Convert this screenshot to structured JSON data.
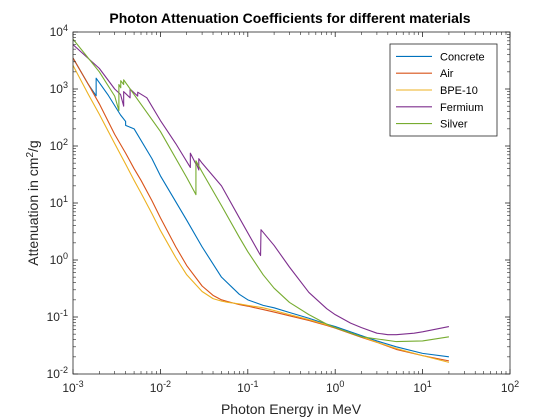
{
  "chart_data": {
    "type": "line",
    "title": "Photon Attenuation Coefficients for different materials",
    "xlabel": "Photon Energy in MeV",
    "ylabel_base": "Attenuation in cm",
    "ylabel_sup": "2",
    "ylabel_tail": "/g",
    "xscale": "log",
    "yscale": "log",
    "xlim": [
      0.001,
      100
    ],
    "ylim": [
      0.01,
      10000
    ],
    "grid": false,
    "legend_position": "top-right",
    "x_ticks": [
      {
        "value": 0.001,
        "base": "10",
        "exp": "-3"
      },
      {
        "value": 0.01,
        "base": "10",
        "exp": "-2"
      },
      {
        "value": 0.1,
        "base": "10",
        "exp": "-1"
      },
      {
        "value": 1,
        "base": "10",
        "exp": "0"
      },
      {
        "value": 10,
        "base": "10",
        "exp": "1"
      },
      {
        "value": 100,
        "base": "10",
        "exp": "2"
      }
    ],
    "y_ticks": [
      {
        "value": 0.01,
        "base": "10",
        "exp": "-2"
      },
      {
        "value": 0.1,
        "base": "10",
        "exp": "-1"
      },
      {
        "value": 1,
        "base": "10",
        "exp": "0"
      },
      {
        "value": 10,
        "base": "10",
        "exp": "1"
      },
      {
        "value": 100,
        "base": "10",
        "exp": "2"
      },
      {
        "value": 1000,
        "base": "10",
        "exp": "3"
      },
      {
        "value": 10000,
        "base": "10",
        "exp": "4"
      }
    ],
    "series": [
      {
        "name": "Concrete",
        "color": "#0072BD",
        "points": [
          [
            0.001,
            3500
          ],
          [
            0.0015,
            1200
          ],
          [
            0.00184,
            760
          ],
          [
            0.00184,
            1550
          ],
          [
            0.0025,
            800
          ],
          [
            0.0035,
            350
          ],
          [
            0.004,
            270
          ],
          [
            0.004,
            230
          ],
          [
            0.005,
            200
          ],
          [
            0.008,
            60
          ],
          [
            0.01,
            30
          ],
          [
            0.02,
            5
          ],
          [
            0.03,
            1.7
          ],
          [
            0.05,
            0.5
          ],
          [
            0.08,
            0.25
          ],
          [
            0.1,
            0.2
          ],
          [
            0.15,
            0.16
          ],
          [
            0.2,
            0.145
          ],
          [
            0.3,
            0.12
          ],
          [
            0.5,
            0.095
          ],
          [
            0.8,
            0.075
          ],
          [
            1,
            0.068
          ],
          [
            2,
            0.047
          ],
          [
            3,
            0.038
          ],
          [
            5,
            0.03
          ],
          [
            10,
            0.023
          ],
          [
            20,
            0.02
          ]
        ]
      },
      {
        "name": "Air",
        "color": "#D95319",
        "points": [
          [
            0.001,
            3500
          ],
          [
            0.0015,
            1200
          ],
          [
            0.002,
            550
          ],
          [
            0.003,
            160
          ],
          [
            0.004,
            75
          ],
          [
            0.005,
            40
          ],
          [
            0.006,
            25
          ],
          [
            0.008,
            11
          ],
          [
            0.01,
            5.5
          ],
          [
            0.015,
            1.7
          ],
          [
            0.02,
            0.8
          ],
          [
            0.03,
            0.35
          ],
          [
            0.04,
            0.24
          ],
          [
            0.05,
            0.2
          ],
          [
            0.06,
            0.185
          ],
          [
            0.08,
            0.165
          ],
          [
            0.1,
            0.155
          ],
          [
            0.15,
            0.135
          ],
          [
            0.2,
            0.122
          ],
          [
            0.3,
            0.105
          ],
          [
            0.5,
            0.087
          ],
          [
            0.8,
            0.071
          ],
          [
            1,
            0.064
          ],
          [
            2,
            0.044
          ],
          [
            3,
            0.036
          ],
          [
            5,
            0.027
          ],
          [
            10,
            0.021
          ],
          [
            20,
            0.017
          ]
        ]
      },
      {
        "name": "BPE-10",
        "color": "#EDB120",
        "points": [
          [
            0.001,
            2600
          ],
          [
            0.0015,
            800
          ],
          [
            0.002,
            360
          ],
          [
            0.003,
            110
          ],
          [
            0.004,
            48
          ],
          [
            0.005,
            25
          ],
          [
            0.006,
            15
          ],
          [
            0.008,
            6.5
          ],
          [
            0.01,
            3.3
          ],
          [
            0.015,
            1.1
          ],
          [
            0.02,
            0.55
          ],
          [
            0.03,
            0.28
          ],
          [
            0.04,
            0.21
          ],
          [
            0.05,
            0.19
          ],
          [
            0.06,
            0.18
          ],
          [
            0.08,
            0.17
          ],
          [
            0.1,
            0.16
          ],
          [
            0.15,
            0.145
          ],
          [
            0.2,
            0.13
          ],
          [
            0.3,
            0.11
          ],
          [
            0.5,
            0.09
          ],
          [
            0.8,
            0.073
          ],
          [
            1,
            0.065
          ],
          [
            2,
            0.045
          ],
          [
            3,
            0.036
          ],
          [
            5,
            0.028
          ],
          [
            10,
            0.021
          ],
          [
            20,
            0.016
          ]
        ]
      },
      {
        "name": "Fermium",
        "color": "#7E2F8E",
        "points": [
          [
            0.001,
            6000
          ],
          [
            0.002,
            2300
          ],
          [
            0.003,
            1000
          ],
          [
            0.0035,
            800
          ],
          [
            0.0038,
            500
          ],
          [
            0.0038,
            900
          ],
          [
            0.0045,
            700
          ],
          [
            0.0045,
            1000
          ],
          [
            0.0055,
            750
          ],
          [
            0.0055,
            880
          ],
          [
            0.007,
            700
          ],
          [
            0.01,
            280
          ],
          [
            0.015,
            110
          ],
          [
            0.022,
            42
          ],
          [
            0.022,
            75
          ],
          [
            0.0255,
            48
          ],
          [
            0.0255,
            52
          ],
          [
            0.0275,
            38
          ],
          [
            0.0275,
            60
          ],
          [
            0.03,
            50
          ],
          [
            0.05,
            20
          ],
          [
            0.08,
            5.5
          ],
          [
            0.14,
            1.2
          ],
          [
            0.1416,
            3.4
          ],
          [
            0.2,
            1.8
          ],
          [
            0.3,
            0.75
          ],
          [
            0.5,
            0.27
          ],
          [
            0.8,
            0.14
          ],
          [
            1,
            0.11
          ],
          [
            1.5,
            0.078
          ],
          [
            2,
            0.065
          ],
          [
            3,
            0.052
          ],
          [
            4,
            0.049
          ],
          [
            5,
            0.049
          ],
          [
            8,
            0.052
          ],
          [
            10,
            0.055
          ],
          [
            20,
            0.068
          ]
        ]
      },
      {
        "name": "Silver",
        "color": "#77AC30",
        "points": [
          [
            0.001,
            7500
          ],
          [
            0.002,
            2000
          ],
          [
            0.003,
            750
          ],
          [
            0.00335,
            420
          ],
          [
            0.00335,
            1200
          ],
          [
            0.00352,
            1050
          ],
          [
            0.00352,
            1400
          ],
          [
            0.0038,
            1200
          ],
          [
            0.0038,
            1450
          ],
          [
            0.005,
            800
          ],
          [
            0.01,
            180
          ],
          [
            0.02,
            28
          ],
          [
            0.0255,
            14
          ],
          [
            0.0255,
            55
          ],
          [
            0.03,
            35
          ],
          [
            0.05,
            9
          ],
          [
            0.08,
            2.5
          ],
          [
            0.1,
            1.4
          ],
          [
            0.15,
            0.55
          ],
          [
            0.2,
            0.32
          ],
          [
            0.3,
            0.18
          ],
          [
            0.5,
            0.11
          ],
          [
            0.8,
            0.075
          ],
          [
            1,
            0.065
          ],
          [
            2,
            0.045
          ],
          [
            5,
            0.037
          ],
          [
            10,
            0.038
          ],
          [
            20,
            0.045
          ]
        ]
      }
    ]
  }
}
